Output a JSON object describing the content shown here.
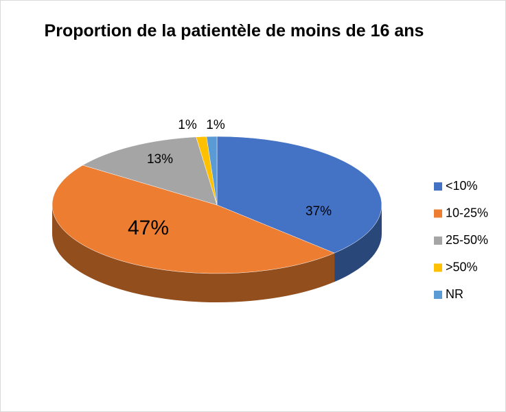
{
  "chart_data": {
    "type": "pie3d",
    "title": "Proportion de la patientèle de moins de 16 ans",
    "categories": [
      "<10%",
      "10-25%",
      "25-50%",
      ">50%",
      "NR"
    ],
    "values": [
      37,
      47,
      13,
      1,
      1
    ],
    "value_labels": [
      "37%",
      "47%",
      "13%",
      "1%",
      "1%"
    ],
    "colors": [
      "#4472c4",
      "#ed7d31",
      "#a5a5a5",
      "#ffc000",
      "#5b9bd5"
    ],
    "legend": "right"
  }
}
